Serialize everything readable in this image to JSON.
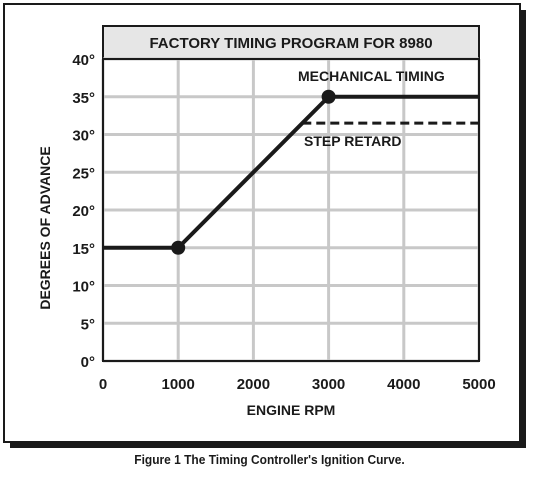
{
  "chart_data": {
    "type": "line",
    "title": "FACTORY TIMING PROGRAM FOR 8980",
    "xlabel": "ENGINE RPM",
    "ylabel": "DEGREES OF ADVANCE",
    "xlim": [
      0,
      5000
    ],
    "ylim": [
      0,
      40
    ],
    "x_ticks": [
      0,
      1000,
      2000,
      3000,
      4000,
      5000
    ],
    "x_tick_labels": [
      "0",
      "1000",
      "2000",
      "3000",
      "4000",
      "5000"
    ],
    "y_ticks": [
      0,
      5,
      10,
      15,
      20,
      25,
      30,
      35,
      40
    ],
    "y_tick_labels": [
      "0°",
      "5°",
      "10°",
      "15°",
      "20°",
      "25°",
      "30°",
      "35°",
      "40°"
    ],
    "grid": true,
    "series": [
      {
        "name": "MECHANICAL TIMING",
        "style": "solid",
        "x": [
          0,
          1000,
          3000,
          5000
        ],
        "y": [
          15,
          15,
          35,
          35
        ],
        "markers_at": [
          1,
          2
        ]
      },
      {
        "name": "STEP RETARD",
        "style": "dashed",
        "x": [
          2650,
          5000
        ],
        "y": [
          31.5,
          31.5
        ]
      }
    ],
    "colors": {
      "line": "#1a1a1a",
      "grid": "#c8c8c8",
      "title_bg": "#e6e6e6"
    }
  },
  "caption": "Figure 1  The Timing Controller's Ignition Curve."
}
